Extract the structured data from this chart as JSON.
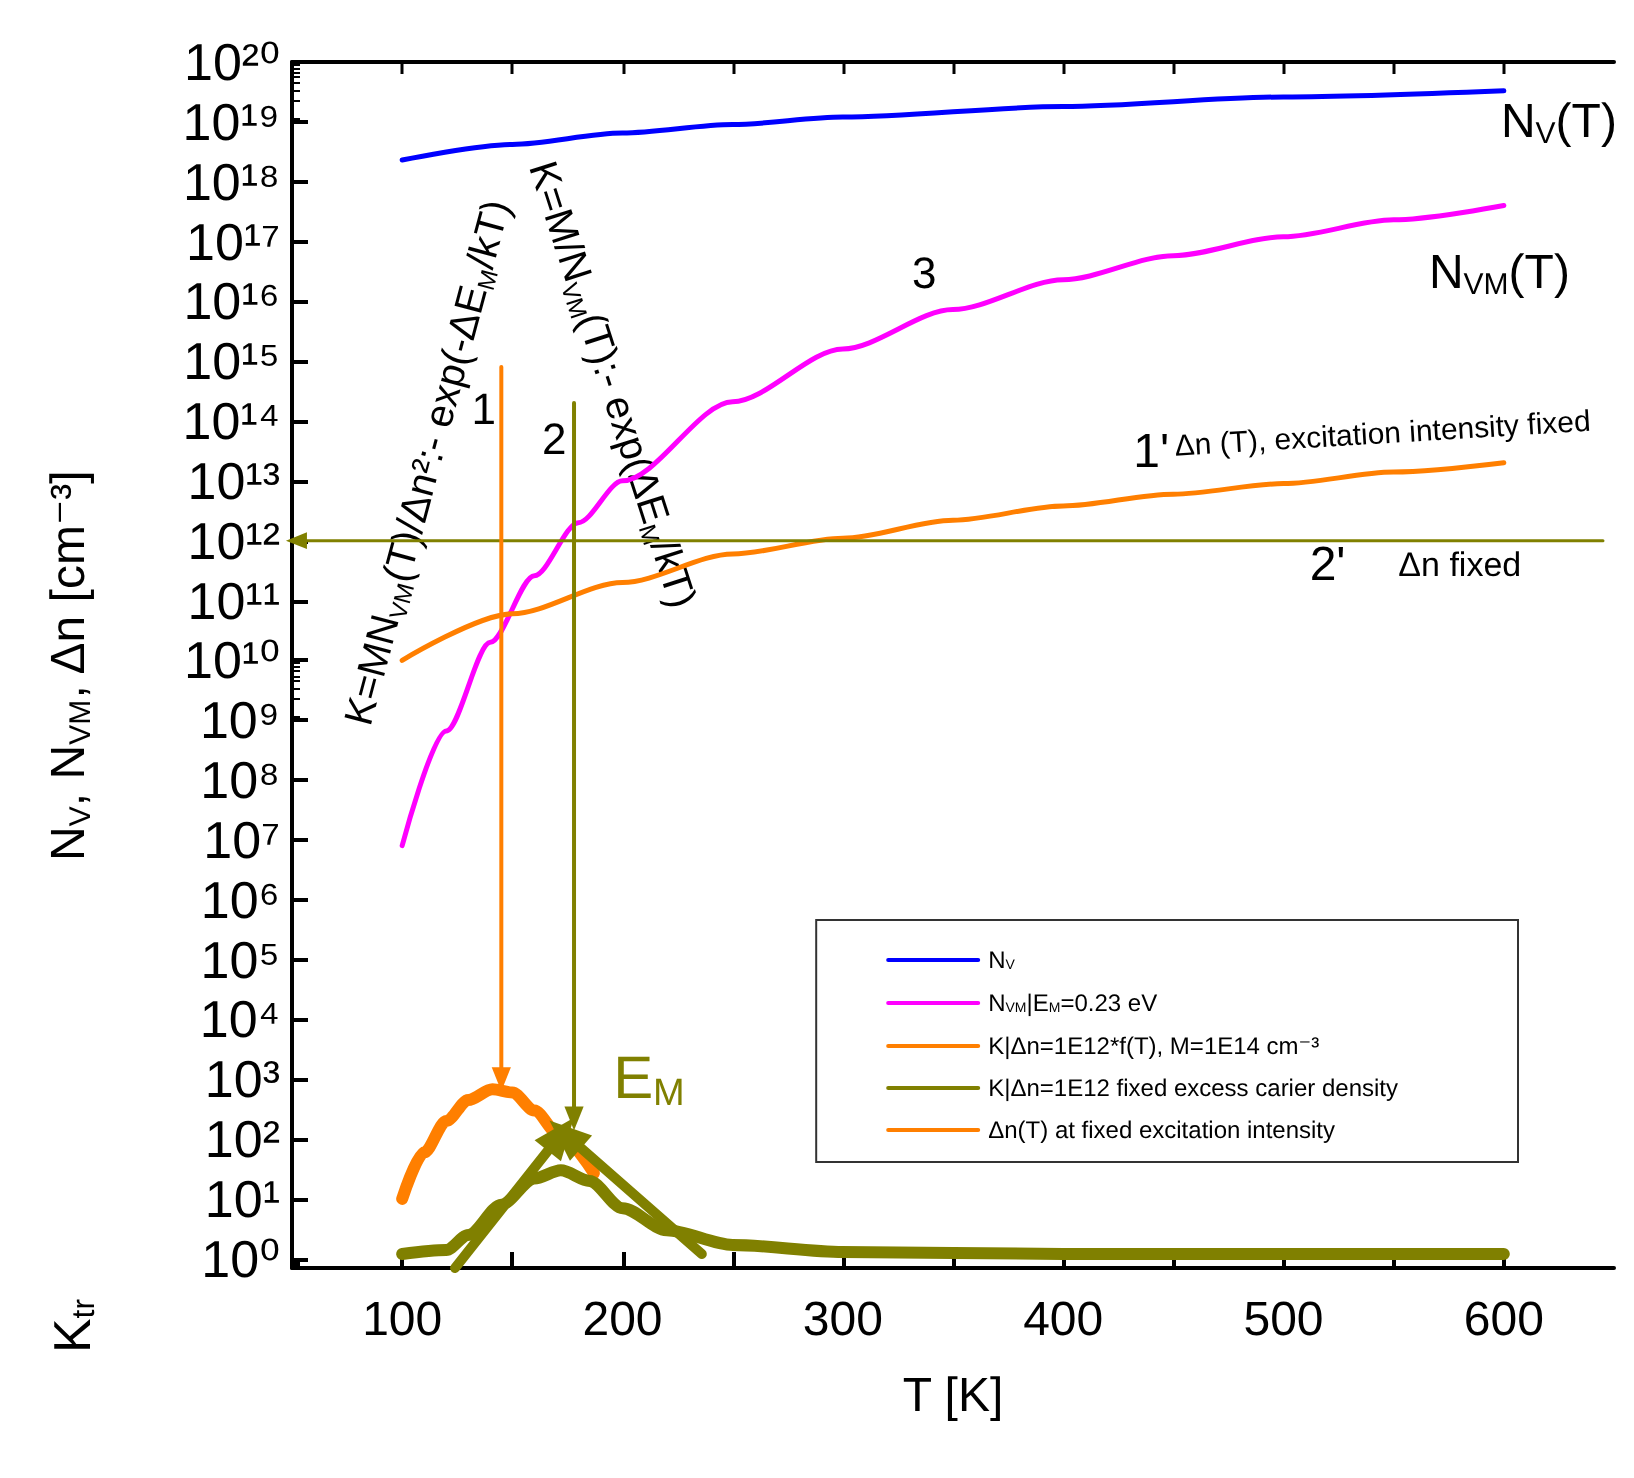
{
  "chart_data": {
    "type": "line",
    "xlabel": "T [K]",
    "ylabel": "N$_{V}$, N$_{VM}$, Δn [cm⁻³]",
    "log": "y",
    "legend": "bottom right",
    "xlim": [
      50,
      650
    ],
    "ylim": [
      0.7,
      1e+20
    ],
    "xticks": [
      100,
      {
        "value": 150,
        "label": null
      },
      200,
      {
        "value": 250,
        "label": null
      },
      300,
      {
        "value": 350,
        "label": null
      },
      400,
      {
        "value": 450,
        "label": null
      },
      500,
      {
        "value": 550,
        "label": null
      },
      600
    ],
    "yticks": [
      {
        "value": 1,
        "label": "10⁰"
      },
      {
        "value": 10,
        "label": "10¹"
      },
      {
        "value": 100,
        "label": "10²"
      },
      {
        "value": 1000.0,
        "label": "10³"
      },
      {
        "value": 10000.0,
        "label": "10⁴"
      },
      {
        "value": 100000.0,
        "label": "10⁵"
      },
      {
        "value": 1000000.0,
        "label": "10⁶"
      },
      {
        "value": 10000000.0,
        "label": "10⁷"
      },
      {
        "value": 100000000.0,
        "label": "10⁸"
      },
      {
        "value": 1000000000.0,
        "label": "10⁹"
      },
      {
        "value": 10000000000.0,
        "label": "10¹⁰"
      },
      {
        "value": 100000000000.0,
        "label": "10¹¹"
      },
      {
        "value": 1000000000000.0,
        "label": "10¹²"
      },
      {
        "value": 10000000000000.0,
        "label": "10¹³"
      },
      {
        "value": 100000000000000.0,
        "label": "10¹⁴"
      },
      {
        "value": 1000000000000000.0,
        "label": "10¹⁵"
      },
      {
        "value": 1e+16,
        "label": "10¹⁶"
      },
      {
        "value": 1e+17,
        "label": "10¹⁷"
      },
      {
        "value": 1e+18,
        "label": "10¹⁸"
      },
      {
        "value": 1e+19,
        "label": "10¹⁹"
      },
      {
        "value": 1e+20,
        "label": "10²⁰"
      }
    ],
    "series": [
      {
        "name": "N$_{V}$",
        "color": "#0000ff",
        "x": [
          100,
          150,
          200,
          250,
          300,
          400,
          500,
          600
        ],
        "values": [
          2.3e+18,
          4.2e+18,
          6.5e+18,
          9e+18,
          1.2e+19,
          1.8e+19,
          2.6e+19,
          3.3e+19
        ]
      },
      {
        "name": "N$_{VM}$|E$_{M}$=0.23 eV",
        "color": "#ff00ff",
        "x": [
          100,
          120,
          140,
          160,
          180,
          200,
          250,
          300,
          350,
          400,
          450,
          500,
          550,
          600
        ],
        "values": [
          8000000.0,
          660000000.0,
          20000000000.0,
          260000000000.0,
          2000000000000.0,
          10000000000000.0,
          210000000000000.0,
          1600000000000000.0,
          7300000000000000.0,
          2.3e+16,
          5.8e+16,
          1.2e+17,
          2.3e+17,
          4e+17
        ]
      },
      {
        "name": "K|Δn=1E12*f(T), M=1E14 cm⁻³",
        "color": "#ff7f00",
        "x": [
          100,
          110,
          120,
          130,
          141,
          150,
          160,
          171,
          187
        ],
        "values": [
          10,
          60,
          200,
          450,
          680,
          600,
          300,
          120,
          27
        ]
      },
      {
        "name": "K|Δn=1E12 fixed excess carier density",
        "color": "#808000",
        "x": [
          100,
          120,
          130,
          145,
          160,
          172,
          185,
          200,
          220,
          250,
          300,
          400,
          500,
          600
        ],
        "values": [
          1.2,
          1.4,
          2.5,
          8,
          22,
          30,
          20,
          7,
          3,
          1.7,
          1.3,
          1.2,
          1.2,
          1.2
        ]
      },
      {
        "name": "Δn(T) at fixed excitation intensity",
        "color": "#ff7f00",
        "x": [
          100,
          150,
          200,
          250,
          300,
          350,
          400,
          450,
          500,
          550,
          600
        ],
        "values": [
          10000000000.0,
          60000000000.0,
          200000000000.0,
          600000000000.0,
          1100000000000.0,
          2200000000000.0,
          3800000000000.0,
          6000000000000.0,
          9000000000000.0,
          14000000000000.0,
          20000000000000.0
        ]
      },
      {
        "color": "#808000",
        "x": [
          645,
          52
        ],
        "values": [
          1000000000000.0,
          1000000000000.0
        ]
      },
      {
        "color": "#ff7f00",
        "x": [
          145,
          145
        ],
        "values": [
          800000000000000.0,
          1000.0
        ]
      },
      {
        "color": "#808000",
        "x": [
          178,
          178
        ],
        "values": [
          200000000000000.0,
          220
        ]
      },
      {
        "color": "#808000",
        "x": [
          124,
          172
        ],
        "values": [
          0.7,
          120
        ]
      },
      {
        "color": "#808000",
        "x": [
          236,
          174
        ],
        "values": [
          1.2,
          120
        ]
      }
    ],
    "annotations": [
      "N$_{V}$(T)",
      "N$_{VM}$(T)",
      "3",
      "1'",
      "Δn (T), excitation intensity fixed",
      "2'",
      "Δn fixed",
      "1",
      "2",
      "K=MN$_{VM}$(T)/Δn²:- exp(-ΔE$_{M}$/kT)",
      "K=M/N$_{VM}$(T):- exp(ΔE$_{M}$/kT)",
      "E$_{M}$",
      "K$_{tr}$"
    ]
  }
}
